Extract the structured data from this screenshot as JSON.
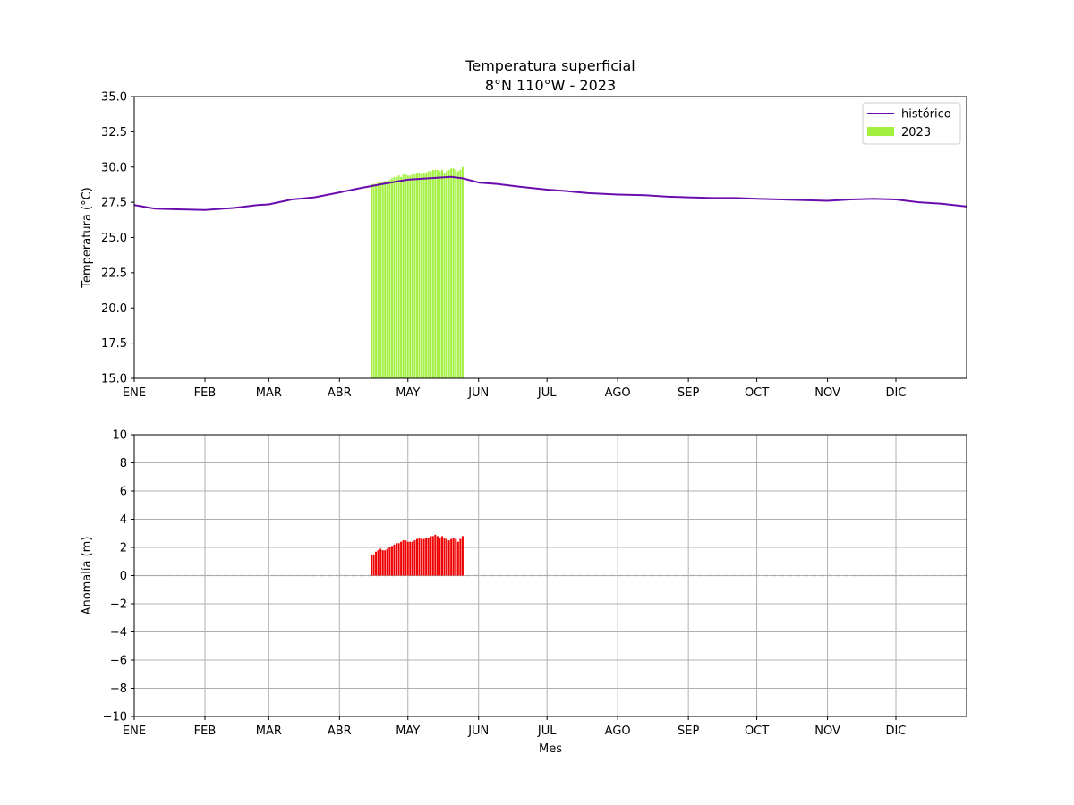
{
  "chart_data": [
    {
      "type": "line+bar",
      "title": "Temperatura superficial",
      "subtitle": "8°N 110°W - 2023",
      "xlabel": "",
      "ylabel": "Temperatura (°C)",
      "ylim": [
        15.0,
        35.0
      ],
      "yticks": [
        "15.0",
        "17.5",
        "20.0",
        "22.5",
        "25.0",
        "27.5",
        "30.0",
        "32.5",
        "35.0"
      ],
      "xlim_day": [
        1,
        366
      ],
      "month_ticks": [
        "ENE",
        "FEB",
        "MAR",
        "ABR",
        "MAY",
        "JUN",
        "JUL",
        "AGO",
        "SEP",
        "OCT",
        "NOV",
        "DIC"
      ],
      "month_start_day": [
        1,
        32,
        60,
        91,
        121,
        152,
        182,
        213,
        244,
        274,
        305,
        335
      ],
      "grid": false,
      "legend": "top-right",
      "colors": {
        "historico": "#6a0dad",
        "bars2023": "#a3f041"
      },
      "series": [
        {
          "name": "histórico",
          "type": "line",
          "points": [
            [
              1,
              27.3
            ],
            [
              10,
              27.05
            ],
            [
              20,
              27.0
            ],
            [
              32,
              26.95
            ],
            [
              45,
              27.1
            ],
            [
              55,
              27.3
            ],
            [
              60,
              27.35
            ],
            [
              70,
              27.7
            ],
            [
              80,
              27.85
            ],
            [
              91,
              28.2
            ],
            [
              100,
              28.5
            ],
            [
              110,
              28.8
            ],
            [
              121,
              29.1
            ],
            [
              130,
              29.2
            ],
            [
              140,
              29.3
            ],
            [
              145,
              29.2
            ],
            [
              152,
              28.9
            ],
            [
              160,
              28.8
            ],
            [
              170,
              28.6
            ],
            [
              182,
              28.4
            ],
            [
              190,
              28.3
            ],
            [
              200,
              28.15
            ],
            [
              213,
              28.05
            ],
            [
              225,
              28.0
            ],
            [
              235,
              27.9
            ],
            [
              244,
              27.85
            ],
            [
              255,
              27.8
            ],
            [
              265,
              27.8
            ],
            [
              274,
              27.75
            ],
            [
              285,
              27.7
            ],
            [
              295,
              27.65
            ],
            [
              305,
              27.6
            ],
            [
              315,
              27.7
            ],
            [
              325,
              27.75
            ],
            [
              335,
              27.7
            ],
            [
              345,
              27.5
            ],
            [
              355,
              27.4
            ],
            [
              366,
              27.2
            ]
          ]
        },
        {
          "name": "2023",
          "type": "bar",
          "start_day": 105,
          "values": [
            28.8,
            28.8,
            28.8,
            28.9,
            28.9,
            28.9,
            29.0,
            29.0,
            29.1,
            29.2,
            29.3,
            29.3,
            29.4,
            29.3,
            29.5,
            29.5,
            29.4,
            29.4,
            29.5,
            29.5,
            29.6,
            29.6,
            29.5,
            29.6,
            29.6,
            29.7,
            29.7,
            29.8,
            29.8,
            29.8,
            29.7,
            29.8,
            29.6,
            29.7,
            29.8,
            29.9,
            29.9,
            29.8,
            29.7,
            29.8,
            30.0
          ]
        }
      ]
    },
    {
      "type": "bar",
      "xlabel": "Mes",
      "ylabel": "Anomalía (m)",
      "ylim": [
        -10,
        10
      ],
      "yticks": [
        "−10",
        "−8",
        "−6",
        "−4",
        "−2",
        "0",
        "2",
        "4",
        "6",
        "8",
        "10"
      ],
      "xlim_day": [
        1,
        366
      ],
      "month_ticks": [
        "ENE",
        "FEB",
        "MAR",
        "ABR",
        "MAY",
        "JUN",
        "JUL",
        "AGO",
        "SEP",
        "OCT",
        "NOV",
        "DIC"
      ],
      "month_start_day": [
        1,
        32,
        60,
        91,
        121,
        152,
        182,
        213,
        244,
        274,
        305,
        335
      ],
      "grid": true,
      "zero_line": "dashed",
      "colors": {
        "bars": "#ee0000"
      },
      "series": [
        {
          "type": "bar",
          "start_day": 105,
          "values": [
            1.5,
            1.5,
            1.7,
            1.8,
            1.9,
            1.8,
            1.8,
            1.9,
            2.0,
            2.1,
            2.2,
            2.3,
            2.3,
            2.4,
            2.5,
            2.5,
            2.4,
            2.4,
            2.4,
            2.5,
            2.6,
            2.7,
            2.6,
            2.6,
            2.7,
            2.7,
            2.8,
            2.8,
            2.9,
            2.8,
            2.7,
            2.8,
            2.7,
            2.6,
            2.5,
            2.6,
            2.7,
            2.6,
            2.4,
            2.6,
            2.8
          ]
        }
      ]
    }
  ]
}
